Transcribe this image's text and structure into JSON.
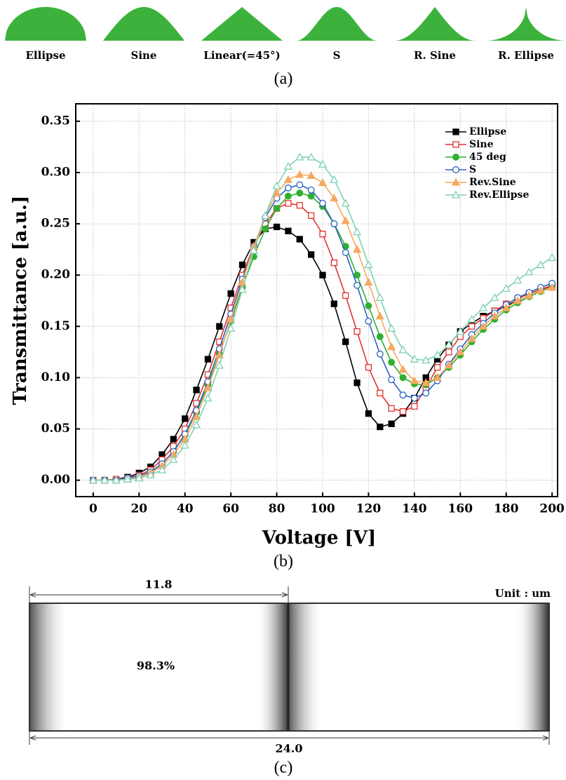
{
  "panel_a": {
    "labels": [
      "Ellipse",
      "Sine",
      "Linear(=45°)",
      "S",
      "R. Sine",
      "R. Ellipse"
    ],
    "caption": "(a)"
  },
  "chart_data": {
    "type": "line",
    "xlabel": "Voltage [V]",
    "ylabel": "Transmittance [a.u.]",
    "caption": "(b)",
    "x": [
      0,
      5,
      10,
      15,
      20,
      25,
      30,
      35,
      40,
      45,
      50,
      55,
      60,
      65,
      70,
      75,
      80,
      85,
      90,
      95,
      100,
      105,
      110,
      115,
      120,
      125,
      130,
      135,
      140,
      145,
      150,
      155,
      160,
      165,
      170,
      175,
      180,
      185,
      190,
      195,
      200
    ],
    "series": [
      {
        "name": "Ellipse",
        "color": "#000000",
        "marker": "square",
        "filled": true,
        "values": [
          0,
          0,
          0.001,
          0.003,
          0.007,
          0.013,
          0.025,
          0.04,
          0.06,
          0.088,
          0.118,
          0.15,
          0.182,
          0.21,
          0.232,
          0.245,
          0.247,
          0.243,
          0.235,
          0.22,
          0.2,
          0.172,
          0.135,
          0.095,
          0.065,
          0.052,
          0.055,
          0.065,
          0.08,
          0.1,
          0.118,
          0.132,
          0.145,
          0.153,
          0.16,
          0.165,
          0.17,
          0.175,
          0.18,
          0.185,
          0.19
        ]
      },
      {
        "name": "Sine",
        "color": "#e53030",
        "marker": "square",
        "filled": false,
        "values": [
          0,
          0,
          0.001,
          0.002,
          0.005,
          0.01,
          0.02,
          0.033,
          0.05,
          0.075,
          0.103,
          0.135,
          0.168,
          0.2,
          0.228,
          0.25,
          0.265,
          0.27,
          0.268,
          0.258,
          0.24,
          0.212,
          0.18,
          0.145,
          0.11,
          0.085,
          0.07,
          0.067,
          0.072,
          0.09,
          0.11,
          0.125,
          0.14,
          0.15,
          0.158,
          0.165,
          0.172,
          0.177,
          0.182,
          0.186,
          0.19
        ]
      },
      {
        "name": "45 deg",
        "color": "#30b030",
        "marker": "circle",
        "filled": true,
        "values": [
          0,
          0,
          0,
          0.002,
          0.004,
          0.008,
          0.016,
          0.028,
          0.044,
          0.066,
          0.093,
          0.123,
          0.155,
          0.188,
          0.218,
          0.245,
          0.265,
          0.277,
          0.28,
          0.277,
          0.267,
          0.25,
          0.228,
          0.2,
          0.17,
          0.14,
          0.115,
          0.1,
          0.094,
          0.093,
          0.1,
          0.11,
          0.122,
          0.135,
          0.147,
          0.157,
          0.166,
          0.173,
          0.179,
          0.184,
          0.188
        ]
      },
      {
        "name": "S",
        "color": "#2a62c0",
        "marker": "circle",
        "filled": false,
        "values": [
          0,
          0,
          0,
          0.002,
          0.004,
          0.008,
          0.016,
          0.028,
          0.045,
          0.068,
          0.096,
          0.128,
          0.162,
          0.196,
          0.228,
          0.256,
          0.275,
          0.285,
          0.288,
          0.283,
          0.27,
          0.25,
          0.222,
          0.19,
          0.155,
          0.123,
          0.098,
          0.083,
          0.08,
          0.085,
          0.097,
          0.113,
          0.128,
          0.142,
          0.153,
          0.163,
          0.171,
          0.178,
          0.183,
          0.188,
          0.192
        ]
      },
      {
        "name": "Rev.Sine",
        "color": "#f5a860",
        "marker": "triangle",
        "filled": true,
        "values": [
          0,
          0,
          0,
          0.001,
          0.003,
          0.007,
          0.014,
          0.025,
          0.04,
          0.062,
          0.09,
          0.122,
          0.157,
          0.193,
          0.228,
          0.258,
          0.28,
          0.293,
          0.298,
          0.297,
          0.29,
          0.275,
          0.253,
          0.225,
          0.193,
          0.16,
          0.13,
          0.108,
          0.097,
          0.095,
          0.1,
          0.112,
          0.125,
          0.138,
          0.15,
          0.16,
          0.168,
          0.175,
          0.18,
          0.185,
          0.188
        ]
      },
      {
        "name": "Rev.Ellipse",
        "color": "#7fd0b2",
        "marker": "triangle",
        "filled": false,
        "values": [
          0,
          0,
          0,
          0.001,
          0.002,
          0.005,
          0.01,
          0.02,
          0.034,
          0.054,
          0.08,
          0.112,
          0.148,
          0.186,
          0.224,
          0.258,
          0.287,
          0.306,
          0.315,
          0.315,
          0.308,
          0.293,
          0.27,
          0.242,
          0.21,
          0.178,
          0.148,
          0.127,
          0.118,
          0.117,
          0.122,
          0.132,
          0.145,
          0.157,
          0.168,
          0.178,
          0.187,
          0.195,
          0.203,
          0.21,
          0.217
        ]
      }
    ],
    "xlim": [
      -7.6,
      202.4
    ],
    "ylim": [
      -0.016,
      0.367
    ],
    "xticks": [
      0,
      20,
      40,
      60,
      80,
      100,
      120,
      140,
      160,
      180,
      200
    ],
    "yticks": [
      {
        "value": 0,
        "label": "0.00"
      },
      0.05,
      {
        "value": 0.1,
        "label": "0.10"
      },
      0.15,
      {
        "value": 0.2,
        "label": "0.20"
      },
      0.25,
      {
        "value": 0.3,
        "label": "0.30"
      },
      0.35
    ],
    "grid": true,
    "legend": "upper right"
  },
  "panel_c": {
    "top_dimension": "11.8",
    "unit_note": "Unit : um",
    "fill_ratio": "98.3%",
    "bottom_dimension": "24.0",
    "caption": "(c)"
  }
}
